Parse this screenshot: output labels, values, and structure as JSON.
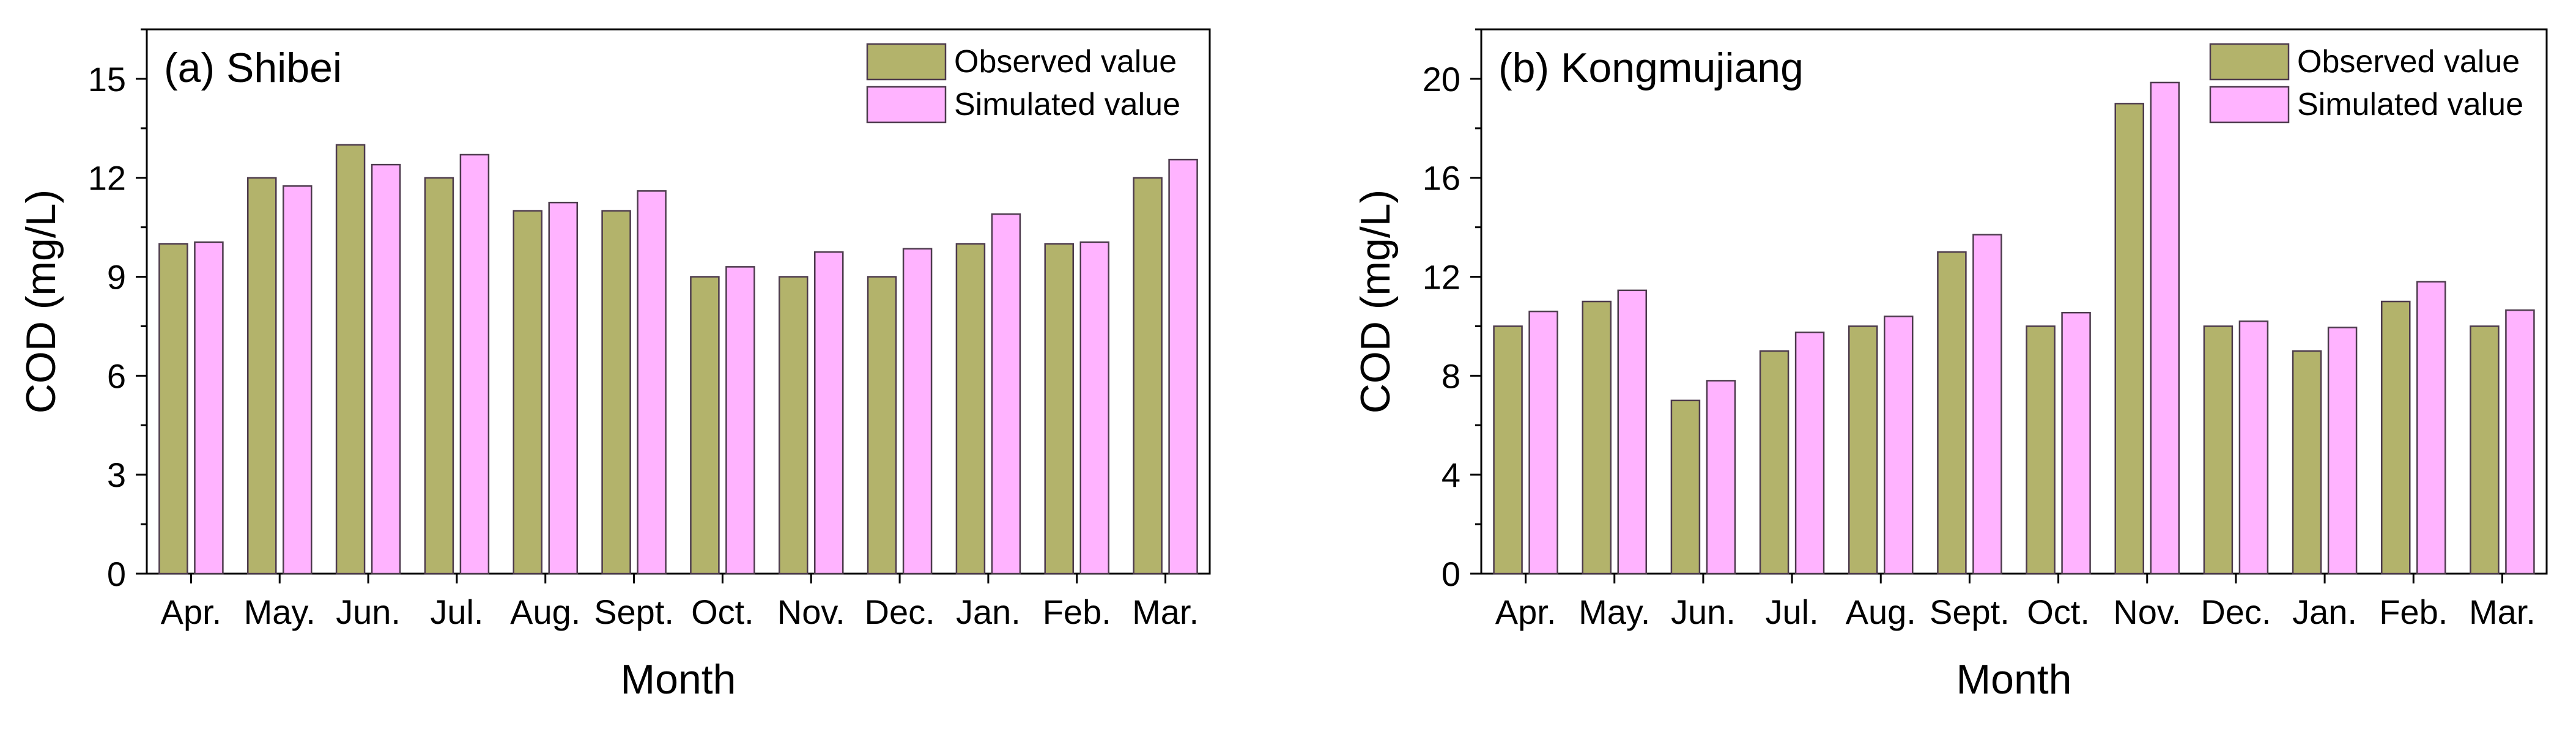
{
  "colors": {
    "observed": "#b3b36b",
    "simulated": "#ffb3ff",
    "bar_stroke": "#4d3b4d",
    "axis": "#000000"
  },
  "chart_data": [
    {
      "type": "bar",
      "title": "(a) Shibei",
      "xlabel": "Month",
      "ylabel": "COD (mg/L)",
      "categories": [
        "Apr.",
        "May.",
        "Jun.",
        "Jul.",
        "Aug.",
        "Sept.",
        "Oct.",
        "Nov.",
        "Dec.",
        "Jan.",
        "Feb.",
        "Mar."
      ],
      "series": [
        {
          "name": "Observed value",
          "values": [
            10,
            12,
            13,
            12,
            11,
            11,
            9,
            9,
            9,
            10,
            10,
            12
          ]
        },
        {
          "name": "Simulated value",
          "values": [
            10.05,
            11.75,
            12.4,
            12.7,
            11.25,
            11.6,
            9.3,
            9.75,
            9.85,
            10.9,
            10.05,
            12.55
          ]
        }
      ],
      "ylim": [
        0,
        16.5
      ],
      "yticks": [
        0,
        3,
        6,
        9,
        12,
        15
      ],
      "legend_position": "top-right",
      "grid": false
    },
    {
      "type": "bar",
      "title": "(b) Kongmujiang",
      "xlabel": "Month",
      "ylabel": "COD (mg/L)",
      "categories": [
        "Apr.",
        "May.",
        "Jun.",
        "Jul.",
        "Aug.",
        "Sept.",
        "Oct.",
        "Nov.",
        "Dec.",
        "Jan.",
        "Feb.",
        "Mar."
      ],
      "series": [
        {
          "name": "Observed value",
          "values": [
            10,
            11,
            7,
            9,
            10,
            13,
            10,
            19,
            10,
            9,
            11,
            10
          ]
        },
        {
          "name": "Simulated value",
          "values": [
            10.6,
            11.45,
            7.8,
            9.75,
            10.4,
            13.7,
            10.55,
            19.85,
            10.2,
            9.95,
            11.8,
            10.65
          ]
        }
      ],
      "ylim": [
        0,
        22
      ],
      "yticks": [
        0,
        4,
        8,
        12,
        16,
        20
      ],
      "legend_position": "top-right",
      "grid": false
    }
  ]
}
